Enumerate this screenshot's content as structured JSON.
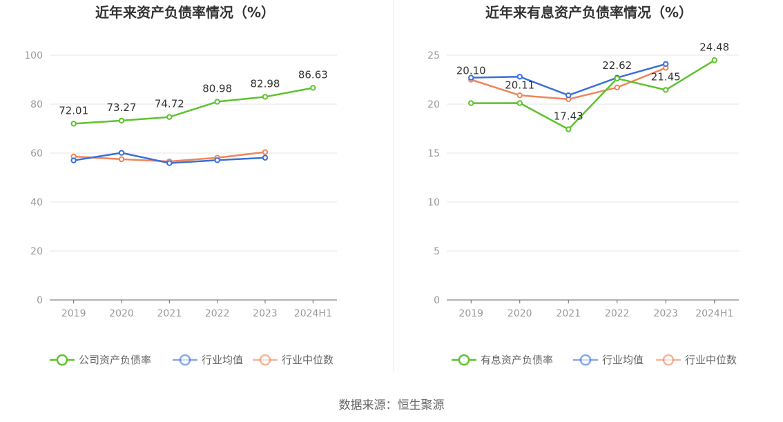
{
  "chart_data": [
    {
      "type": "line",
      "title": "近年来资产负债率情况（%）",
      "categories": [
        "2019",
        "2020",
        "2021",
        "2022",
        "2023",
        "2024H1"
      ],
      "ylim": [
        0,
        100
      ],
      "yticks": [
        "0",
        "20",
        "40",
        "60",
        "80",
        "100"
      ],
      "grid": true,
      "legend_position": "bottom",
      "series": [
        {
          "name": "公司资产负债率",
          "color": "#5cc32c",
          "values": [
            72.01,
            73.27,
            74.72,
            80.98,
            82.98,
            86.63
          ],
          "labels": [
            "72.01",
            "73.27",
            "74.72",
            "80.98",
            "82.98",
            "86.63"
          ]
        },
        {
          "name": "行业均值",
          "color": "#3a6fd8",
          "values": [
            57.0,
            60.1,
            55.9,
            57.1,
            58.1,
            null
          ]
        },
        {
          "name": "行业中位数",
          "color": "#f0845a",
          "values": [
            58.6,
            57.5,
            56.6,
            58.1,
            60.4,
            null
          ]
        }
      ]
    },
    {
      "type": "line",
      "title": "近年来有息资产负债率情况（%）",
      "categories": [
        "2019",
        "2020",
        "2021",
        "2022",
        "2023",
        "2024H1"
      ],
      "ylim": [
        0,
        25
      ],
      "yticks": [
        "0",
        "5",
        "10",
        "15",
        "20",
        "25"
      ],
      "grid": true,
      "legend_position": "bottom",
      "series": [
        {
          "name": "有息资产负债率",
          "color": "#5cc32c",
          "values": [
            20.1,
            20.11,
            17.43,
            22.62,
            21.45,
            24.48
          ],
          "labels": [
            "20.10",
            "20.11",
            "17.43",
            "22.62",
            "21.45",
            "24.48"
          ]
        },
        {
          "name": "行业均值",
          "color": "#3a6fd8",
          "values": [
            22.7,
            22.8,
            20.9,
            22.7,
            24.1,
            null
          ]
        },
        {
          "name": "行业中位数",
          "color": "#f0845a",
          "values": [
            22.5,
            20.9,
            20.5,
            21.7,
            23.7,
            null
          ]
        }
      ]
    }
  ],
  "footer": {
    "source": "数据来源：恒生聚源"
  }
}
